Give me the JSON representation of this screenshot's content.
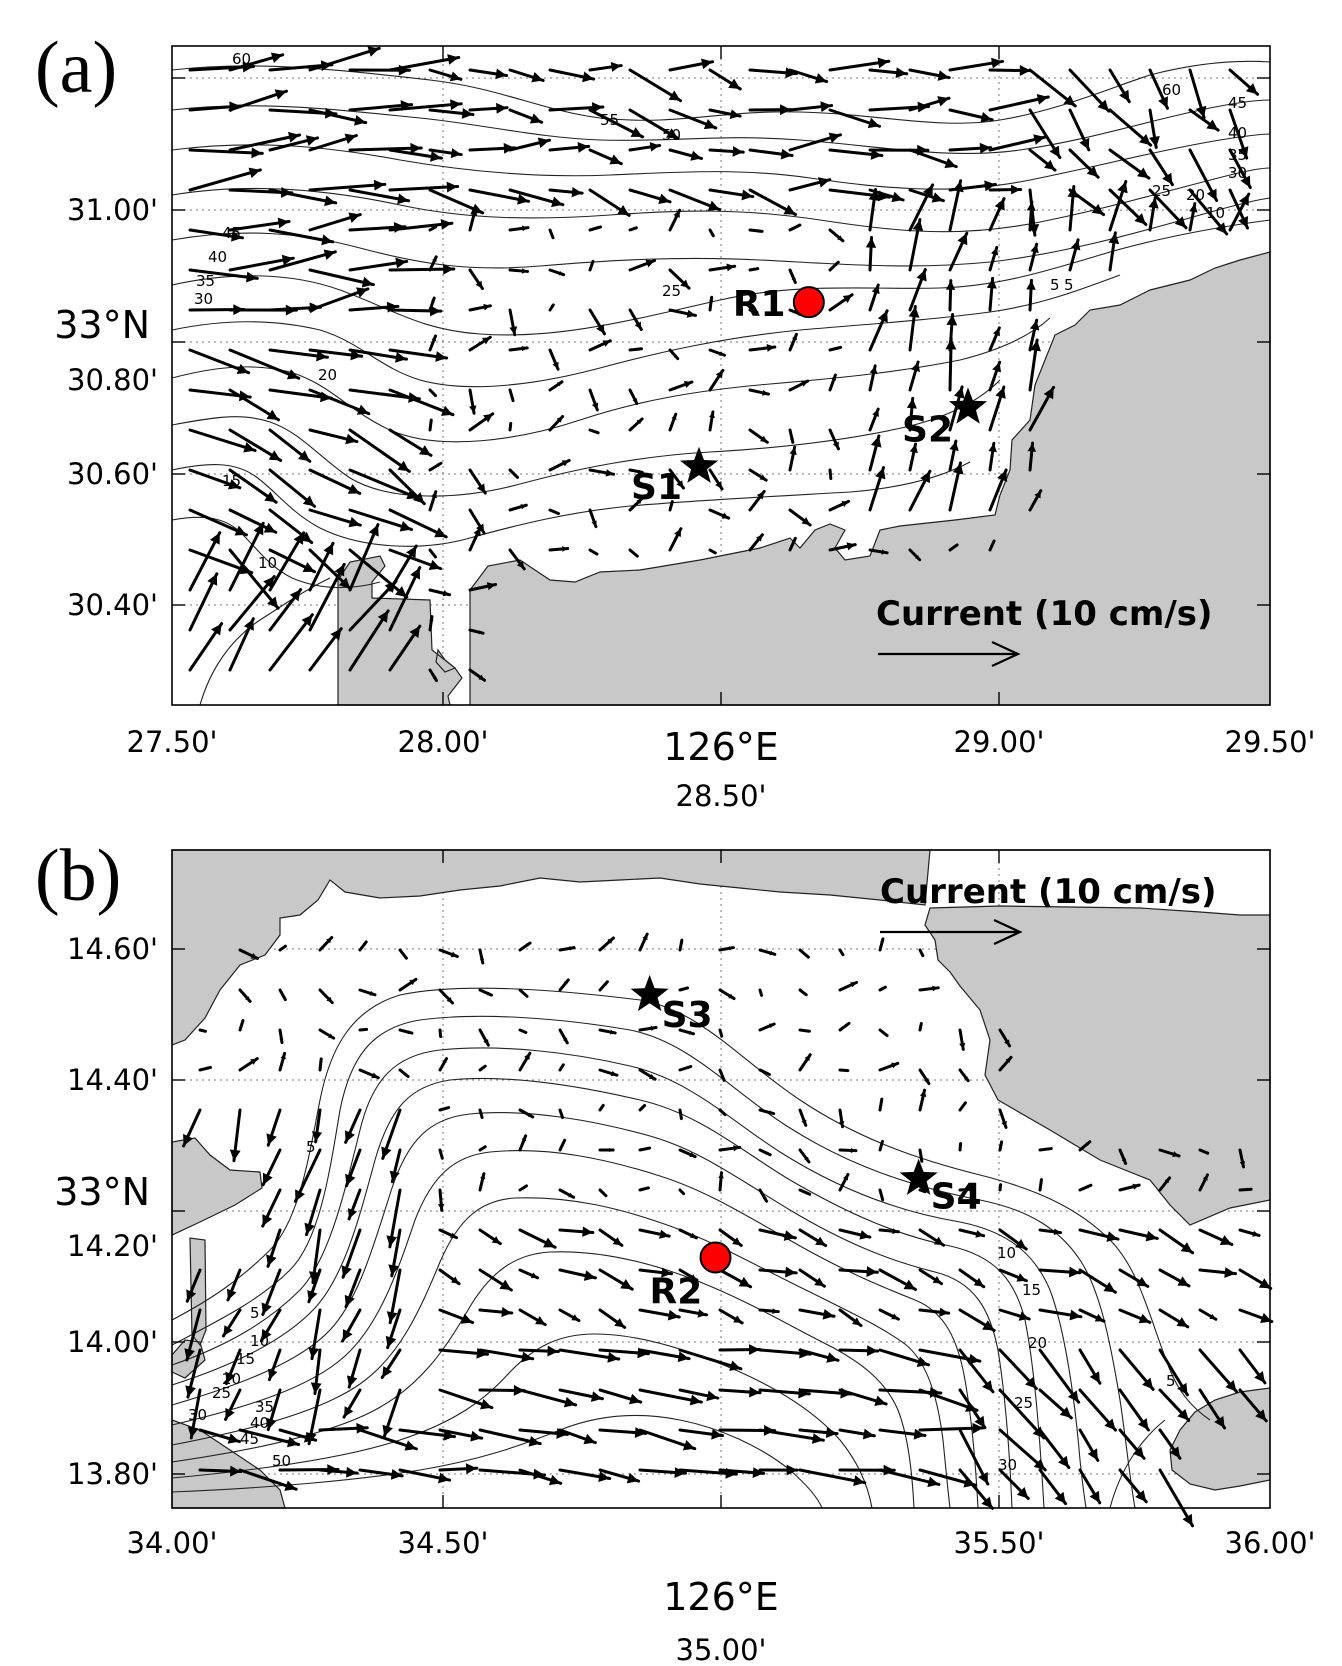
{
  "panels": [
    {
      "id": "a",
      "label": "(a)",
      "x_ticks": [
        "27.50'",
        "28.00'",
        "28.50'",
        "29.00'",
        "29.50'"
      ],
      "x_degree": "126°E",
      "y_ticks": [
        "30.40'",
        "30.60'",
        "30.80'",
        "31.00'"
      ],
      "y_degree": "33°N",
      "legend": "Current (10 cm/s)",
      "markers": [
        {
          "name": "R1",
          "kind": "circle",
          "lon_min": 28.66,
          "lat_min": 30.86,
          "color": "#ff0000"
        },
        {
          "name": "S1",
          "kind": "star",
          "lon_min": 28.46,
          "lat_min": 30.61
        },
        {
          "name": "S2",
          "kind": "star",
          "lon_min": 28.95,
          "lat_min": 30.7
        }
      ],
      "contour_labels": [
        "60",
        "55",
        "50",
        "45",
        "40",
        "35",
        "30",
        "25",
        "20",
        "15",
        "10",
        "5",
        "60",
        "45",
        "40",
        "35",
        "30",
        "25",
        "20",
        "10",
        "5"
      ]
    },
    {
      "id": "b",
      "label": "(b)",
      "x_ticks": [
        "34.00'",
        "34.50'",
        "35.00'",
        "35.50'",
        "36.00'"
      ],
      "x_degree": "126°E",
      "y_ticks": [
        "13.80'",
        "14.00'",
        "14.20'",
        "14.40'",
        "14.60'"
      ],
      "y_degree": "33°N",
      "legend": "Current (10 cm/s)",
      "markers": [
        {
          "name": "R2",
          "kind": "circle",
          "lon_min": 34.99,
          "lat_min": 14.13,
          "color": "#ff0000"
        },
        {
          "name": "S3",
          "kind": "star",
          "lon_min": 34.87,
          "lat_min": 14.53
        },
        {
          "name": "S4",
          "kind": "star",
          "lon_min": 35.36,
          "lat_min": 14.25
        }
      ],
      "contour_labels": [
        "5",
        "10",
        "15",
        "20",
        "25",
        "30",
        "35",
        "40",
        "45",
        "50",
        "5",
        "10",
        "15",
        "20",
        "25",
        "30",
        "5"
      ]
    }
  ],
  "colors": {
    "land": "#c8c8c8",
    "station_circle": "#ff0000"
  }
}
